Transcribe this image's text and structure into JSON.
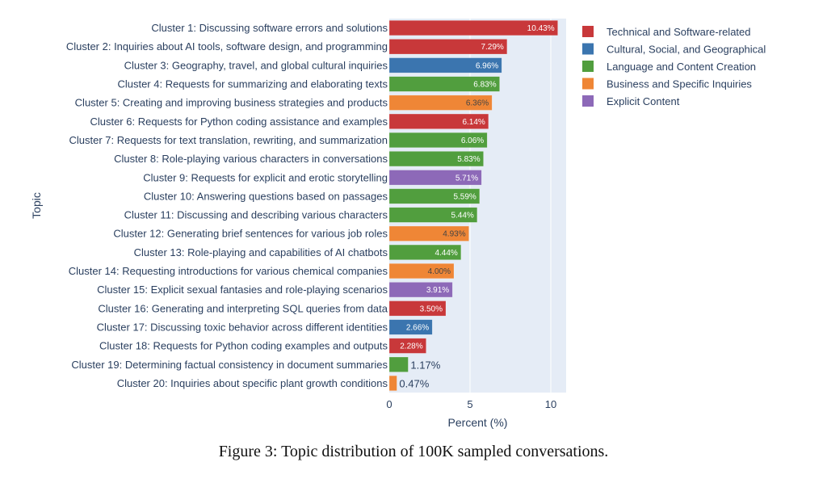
{
  "chart_data": {
    "type": "bar",
    "orientation": "horizontal",
    "title": "",
    "xlabel": "Percent (%)",
    "ylabel": "Topic",
    "xlim": [
      0,
      10.95
    ],
    "xticks": [
      0,
      5,
      10
    ],
    "grid": true,
    "legend_position": "right",
    "legend": [
      {
        "name": "Technical and Software-related",
        "color": "#c8383a"
      },
      {
        "name": "Cultural, Social, and Geographical",
        "color": "#3b75af"
      },
      {
        "name": "Language and Content Creation",
        "color": "#519e3e"
      },
      {
        "name": "Business and Specific Inquiries",
        "color": "#ef8636"
      },
      {
        "name": "Explicit Content",
        "color": "#8d69b8"
      }
    ],
    "bars": [
      {
        "label": "Cluster 1: Discussing software errors and solutions",
        "value": 10.43,
        "text": "10.43%",
        "group": 0
      },
      {
        "label": "Cluster 2: Inquiries about AI tools, software design, and programming",
        "value": 7.29,
        "text": "7.29%",
        "group": 0
      },
      {
        "label": "Cluster 3: Geography, travel, and global cultural inquiries",
        "value": 6.96,
        "text": "6.96%",
        "group": 1
      },
      {
        "label": "Cluster 4: Requests for summarizing and elaborating texts",
        "value": 6.83,
        "text": "6.83%",
        "group": 2
      },
      {
        "label": "Cluster 5: Creating and improving business strategies and products",
        "value": 6.36,
        "text": "6.36%",
        "group": 3
      },
      {
        "label": "Cluster 6: Requests for Python coding assistance and examples",
        "value": 6.14,
        "text": "6.14%",
        "group": 0
      },
      {
        "label": "Cluster 7: Requests for text translation, rewriting, and summarization",
        "value": 6.06,
        "text": "6.06%",
        "group": 2
      },
      {
        "label": "Cluster 8: Role-playing various characters in conversations",
        "value": 5.83,
        "text": "5.83%",
        "group": 2
      },
      {
        "label": "Cluster 9: Requests for explicit and erotic storytelling",
        "value": 5.71,
        "text": "5.71%",
        "group": 4
      },
      {
        "label": "Cluster 10: Answering questions based on passages",
        "value": 5.59,
        "text": "5.59%",
        "group": 2
      },
      {
        "label": "Cluster 11: Discussing and describing various characters",
        "value": 5.44,
        "text": "5.44%",
        "group": 2
      },
      {
        "label": "Cluster 12: Generating brief sentences for various job roles",
        "value": 4.93,
        "text": "4.93%",
        "group": 3
      },
      {
        "label": "Cluster 13: Role-playing and capabilities of AI chatbots",
        "value": 4.44,
        "text": "4.44%",
        "group": 2
      },
      {
        "label": "Cluster 14: Requesting introductions for various chemical companies",
        "value": 4.0,
        "text": "4.00%",
        "group": 3
      },
      {
        "label": "Cluster 15: Explicit sexual fantasies and role-playing scenarios",
        "value": 3.91,
        "text": "3.91%",
        "group": 4
      },
      {
        "label": "Cluster 16: Generating and interpreting SQL queries from data",
        "value": 3.5,
        "text": "3.50%",
        "group": 0
      },
      {
        "label": "Cluster 17: Discussing toxic behavior across different identities",
        "value": 2.66,
        "text": "2.66%",
        "group": 1
      },
      {
        "label": "Cluster 18: Requests for Python coding examples and outputs",
        "value": 2.28,
        "text": "2.28%",
        "group": 0
      },
      {
        "label": "Cluster 19: Determining factual consistency in document summaries",
        "value": 1.17,
        "text": "1.17%",
        "group": 2
      },
      {
        "label": "Cluster 20: Inquiries about specific plant growth conditions",
        "value": 0.47,
        "text": "0.47%",
        "group": 3
      }
    ],
    "plot_bg": "#e5ecf6",
    "text_color": "#2a3f5f"
  },
  "caption": "Figure 3: Topic distribution of 100K sampled conversations."
}
